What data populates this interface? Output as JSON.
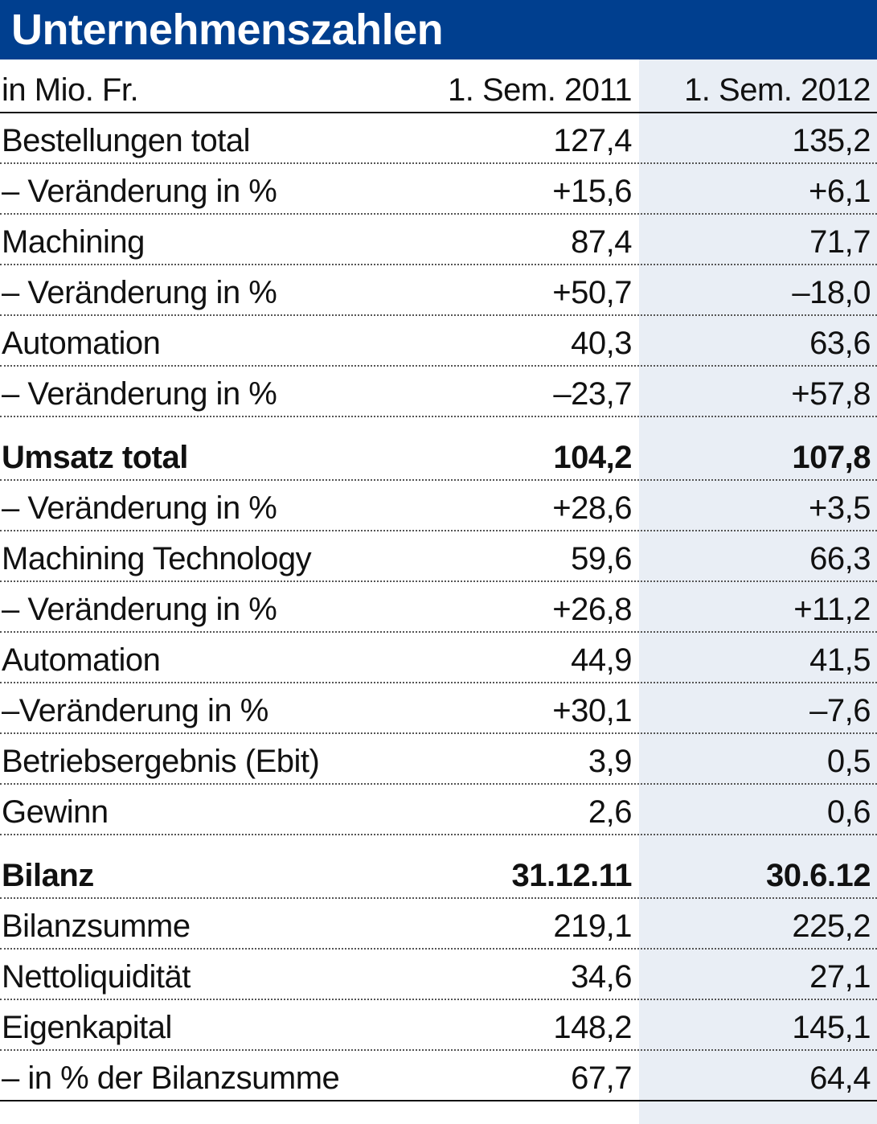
{
  "title": "Unternehmenszahlen",
  "header": {
    "unit": "in Mio. Fr.",
    "col1": "1. Sem. 2011",
    "col2": "1. Sem. 2012"
  },
  "rows": [
    {
      "label": "Bestellungen total",
      "v1": "127,4",
      "v2": "135,2"
    },
    {
      "label": "– Veränderung in %",
      "v1": "+15,6",
      "v2": "+6,1"
    },
    {
      "label": "Machining",
      "v1": "87,4",
      "v2": "71,7"
    },
    {
      "label": "– Veränderung in %",
      "v1": "+50,7",
      "v2": "–18,0"
    },
    {
      "label": "Automation",
      "v1": "40,3",
      "v2": "63,6"
    },
    {
      "label": "– Veränderung in %",
      "v1": "–23,7",
      "v2": "+57,8"
    },
    {
      "label": "Umsatz total",
      "v1": "104,2",
      "v2": "107,8"
    },
    {
      "label": "– Veränderung in %",
      "v1": "+28,6",
      "v2": "+3,5"
    },
    {
      "label": "Machining Technology",
      "v1": "59,6",
      "v2": "66,3"
    },
    {
      "label": "– Veränderung in %",
      "v1": "+26,8",
      "v2": "+11,2"
    },
    {
      "label": "Automation",
      "v1": "44,9",
      "v2": "41,5"
    },
    {
      "label": "–Veränderung in %",
      "v1": "+30,1",
      "v2": "–7,6"
    },
    {
      "label": "Betriebsergebnis (Ebit)",
      "v1": "3,9",
      "v2": "0,5"
    },
    {
      "label": "Gewinn",
      "v1": "2,6",
      "v2": "0,6"
    },
    {
      "label": "Bilanz",
      "v1": "31.12.11",
      "v2": "30.6.12"
    },
    {
      "label": "Bilanzsumme",
      "v1": "219,1",
      "v2": "225,2"
    },
    {
      "label": "Nettoliquidität",
      "v1": "34,6",
      "v2": "27,1"
    },
    {
      "label": "Eigenkapital",
      "v1": "148,2",
      "v2": "145,1"
    },
    {
      "label": "– in % der Bilanzsumme",
      "v1": "67,7",
      "v2": "64,4"
    }
  ],
  "colors": {
    "title_bg": "#003f8f",
    "title_text": "#ffffff",
    "shade": "#e9eef5"
  }
}
